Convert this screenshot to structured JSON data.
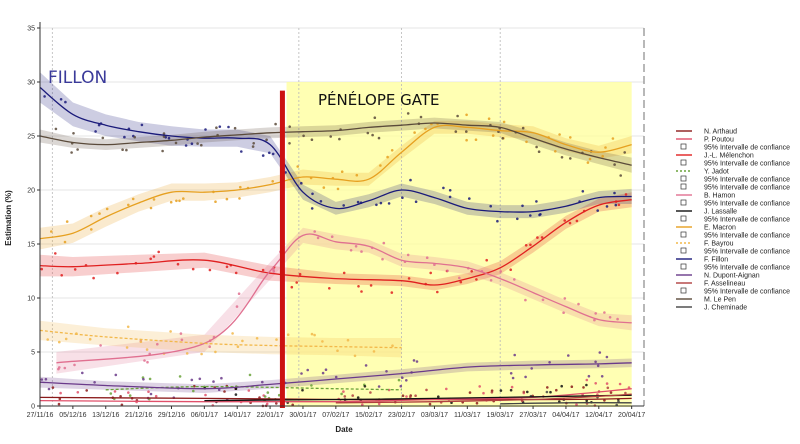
{
  "chart_data": {
    "type": "line",
    "xlabel": "Date",
    "ylabel": "Estimation (%)",
    "ylim": [
      0,
      35
    ],
    "yticks": [
      0,
      5,
      10,
      15,
      20,
      25,
      30,
      35
    ],
    "xlim": [
      "2016-11-27",
      "2017-04-23"
    ],
    "xtick_labels": [
      "27/11/16",
      "05/12/16",
      "13/12/16",
      "21/12/16",
      "29/12/16",
      "06/01/17",
      "14/01/17",
      "22/01/17",
      "30/01/17",
      "07/02/17",
      "15/02/17",
      "23/02/17",
      "03/03/17",
      "11/03/17",
      "19/03/17",
      "27/03/17",
      "04/04/17",
      "12/04/17",
      "20/04/17"
    ],
    "xtick_dates": [
      "2016-11-27",
      "2016-12-05",
      "2016-12-13",
      "2016-12-21",
      "2016-12-29",
      "2017-01-06",
      "2017-01-14",
      "2017-01-22",
      "2017-01-30",
      "2017-02-07",
      "2017-02-15",
      "2017-02-23",
      "2017-03-03",
      "2017-03-11",
      "2017-03-19",
      "2017-03-27",
      "2017-04-04",
      "2017-04-12",
      "2017-04-20"
    ],
    "grid": true,
    "legend_position": "right",
    "annotations": {
      "fillon_label": "FILLON",
      "gate_label": "PÉNÉLOPE GATE",
      "gate_date": "2017-01-25",
      "gate_shade_range": [
        "2017-01-26",
        "2017-04-20"
      ],
      "gate_shade_top": 30,
      "vertical_markers": [
        "2016-11-30",
        "2017-01-29",
        "2017-02-23",
        "2017-03-19",
        "2017-04-23"
      ]
    },
    "series": [
      {
        "name": "N. Arthaud",
        "color": "#8b1a1a",
        "style": "solid",
        "x": [
          "2016-11-27",
          "2017-01-06",
          "2017-02-07",
          "2017-03-03",
          "2017-04-04",
          "2017-04-20"
        ],
        "y": [
          0.8,
          0.7,
          0.6,
          0.6,
          0.6,
          0.7
        ]
      },
      {
        "name": "P. Poutou",
        "color": "#e0506a",
        "style": "solid",
        "x": [
          "2016-11-27",
          "2017-01-06",
          "2017-02-07",
          "2017-03-03",
          "2017-03-27",
          "2017-04-20"
        ],
        "y": [
          0.5,
          0.4,
          0.4,
          0.6,
          0.8,
          1.6
        ]
      },
      {
        "name": "J.-L. Mélenchon",
        "color": "#e02020",
        "style": "solid",
        "x": [
          "2016-11-27",
          "2016-12-05",
          "2016-12-21",
          "2017-01-06",
          "2017-01-22",
          "2017-02-07",
          "2017-02-23",
          "2017-03-03",
          "2017-03-11",
          "2017-03-19",
          "2017-03-27",
          "2017-04-04",
          "2017-04-12",
          "2017-04-20"
        ],
        "y": [
          13,
          12.9,
          13.2,
          13.5,
          12.3,
          11.8,
          11.6,
          11.2,
          11.8,
          12.8,
          14.8,
          17,
          18.6,
          19.1
        ],
        "ci": [
          1.0,
          0.9,
          0.8,
          0.7,
          0.7,
          0.5,
          0.5,
          0.5,
          0.5,
          0.6,
          0.6,
          0.6,
          0.6,
          0.7
        ]
      },
      {
        "name": "Y. Jadot",
        "color": "#6aa23a",
        "style": "dashed",
        "x": [
          "2016-12-13",
          "2017-01-06",
          "2017-02-07",
          "2017-02-23"
        ],
        "y": [
          1.5,
          1.8,
          1.6,
          1.5
        ]
      },
      {
        "name": "B. Hamon",
        "color": "#e07090",
        "style": "solid",
        "x": [
          "2016-12-01",
          "2017-01-06",
          "2017-01-22",
          "2017-01-30",
          "2017-02-07",
          "2017-02-15",
          "2017-02-23",
          "2017-03-03",
          "2017-03-11",
          "2017-03-19",
          "2017-03-27",
          "2017-04-04",
          "2017-04-12",
          "2017-04-20"
        ],
        "y": [
          4,
          5.8,
          12.5,
          15.8,
          15.2,
          14.8,
          13.5,
          13.2,
          12.8,
          11.8,
          10.5,
          9.2,
          8,
          7.7
        ],
        "ci": [
          1.0,
          0.8,
          0.8,
          0.7,
          0.7,
          0.6,
          0.6,
          0.6,
          0.6,
          0.6,
          0.6,
          0.6,
          0.6,
          0.7
        ]
      },
      {
        "name": "J. Lassalle",
        "color": "#111111",
        "style": "solid",
        "x": [
          "2017-01-06",
          "2017-02-07",
          "2017-03-03",
          "2017-04-04",
          "2017-04-20"
        ],
        "y": [
          0.5,
          0.6,
          0.7,
          0.9,
          1.0
        ]
      },
      {
        "name": "E. Macron",
        "color": "#e6a020",
        "style": "solid",
        "x": [
          "2016-11-27",
          "2016-12-05",
          "2016-12-13",
          "2016-12-21",
          "2016-12-29",
          "2017-01-06",
          "2017-01-14",
          "2017-01-22",
          "2017-01-30",
          "2017-02-07",
          "2017-02-15",
          "2017-02-23",
          "2017-03-03",
          "2017-03-11",
          "2017-03-19",
          "2017-03-27",
          "2017-04-04",
          "2017-04-12",
          "2017-04-20"
        ],
        "y": [
          15.5,
          16,
          17.5,
          18.8,
          19.8,
          19.8,
          20,
          20.5,
          21.2,
          21,
          21,
          23.5,
          25.8,
          25.8,
          25.5,
          25.3,
          24.2,
          23.5,
          24.2
        ],
        "ci": [
          1.0,
          0.9,
          0.9,
          0.8,
          0.8,
          0.8,
          0.7,
          0.7,
          0.7,
          0.6,
          0.6,
          0.6,
          0.6,
          0.6,
          0.6,
          0.6,
          0.6,
          0.6,
          0.8
        ]
      },
      {
        "name": "F. Bayrou",
        "color": "#f2b84a",
        "style": "dashed",
        "x": [
          "2016-11-27",
          "2016-12-13",
          "2017-01-06",
          "2017-01-22",
          "2017-02-07",
          "2017-02-23"
        ],
        "y": [
          7,
          6.4,
          5.8,
          5.6,
          5.5,
          5.4
        ],
        "ci": [
          0.9,
          0.8,
          0.8,
          0.8,
          0.8,
          0.9
        ]
      },
      {
        "name": "F. Fillon",
        "color": "#1a1a7a",
        "style": "solid",
        "x": [
          "2016-11-27",
          "2016-12-05",
          "2016-12-13",
          "2016-12-21",
          "2016-12-29",
          "2017-01-06",
          "2017-01-14",
          "2017-01-22",
          "2017-01-30",
          "2017-02-07",
          "2017-02-15",
          "2017-02-23",
          "2017-03-03",
          "2017-03-11",
          "2017-03-19",
          "2017-03-27",
          "2017-04-04",
          "2017-04-12",
          "2017-04-20"
        ],
        "y": [
          29.5,
          27,
          26,
          25.4,
          25,
          24.8,
          24.8,
          24.2,
          19.8,
          18.3,
          19,
          20,
          19.3,
          18.3,
          18,
          18,
          18.5,
          19.3,
          19.4
        ],
        "ci": [
          1.4,
          1.1,
          1.0,
          0.9,
          0.9,
          0.8,
          0.8,
          0.8,
          0.7,
          0.6,
          0.6,
          0.6,
          0.6,
          0.6,
          0.6,
          0.6,
          0.6,
          0.6,
          0.7
        ]
      },
      {
        "name": "N. Dupont-Aignan",
        "color": "#6a3a8a",
        "style": "solid",
        "x": [
          "2016-11-27",
          "2016-12-13",
          "2017-01-06",
          "2017-01-22",
          "2017-02-07",
          "2017-02-23",
          "2017-03-11",
          "2017-03-27",
          "2017-04-12",
          "2017-04-20"
        ],
        "y": [
          2.2,
          1.9,
          1.6,
          2,
          2.5,
          3,
          3.6,
          3.8,
          3.9,
          4
        ],
        "ci": [
          0.5,
          0.4,
          0.4,
          0.4,
          0.4,
          0.4,
          0.4,
          0.4,
          0.4,
          0.4
        ]
      },
      {
        "name": "F. Asselineau",
        "color": "#b04040",
        "style": "solid",
        "x": [
          "2017-02-07",
          "2017-03-03",
          "2017-03-27",
          "2017-04-12",
          "2017-04-20"
        ],
        "y": [
          0.3,
          0.4,
          0.6,
          0.9,
          1.1
        ]
      },
      {
        "name": "M. Le Pen",
        "color": "#5a4a3a",
        "style": "solid",
        "x": [
          "2016-11-27",
          "2016-12-05",
          "2016-12-13",
          "2016-12-21",
          "2016-12-29",
          "2017-01-06",
          "2017-01-14",
          "2017-01-22",
          "2017-01-30",
          "2017-02-07",
          "2017-02-15",
          "2017-02-23",
          "2017-03-03",
          "2017-03-11",
          "2017-03-19",
          "2017-03-27",
          "2017-04-04",
          "2017-04-12",
          "2017-04-20"
        ],
        "y": [
          25,
          24.4,
          24.2,
          24.4,
          24.6,
          24.9,
          25.1,
          25.3,
          25.4,
          25.5,
          25.8,
          26,
          26.2,
          26,
          25.8,
          24.8,
          23.8,
          23,
          22.3
        ],
        "ci": [
          0.6,
          0.5,
          0.5,
          0.5,
          0.5,
          0.5,
          0.5,
          0.5,
          0.5,
          0.5,
          0.5,
          0.5,
          0.5,
          0.5,
          0.5,
          0.6,
          0.6,
          0.6,
          0.7
        ]
      },
      {
        "name": "J. Cheminade",
        "color": "#444444",
        "style": "solid",
        "x": [
          "2017-03-19",
          "2017-04-04",
          "2017-04-20"
        ],
        "y": [
          0.2,
          0.3,
          0.3
        ]
      }
    ]
  },
  "legend": [
    {
      "label": "N. Arthaud",
      "kind": "line",
      "color": "#8b1a1a"
    },
    {
      "label": "P. Poutou",
      "kind": "line",
      "color": "#e0506a"
    },
    {
      "label": "95% Intervalle de confiance",
      "kind": "box",
      "color": "#e02020"
    },
    {
      "label": "J.-L. Mélenchon",
      "kind": "line",
      "color": "#e02020"
    },
    {
      "label": "95% Intervalle de confiance",
      "kind": "box",
      "color": "#e07090"
    },
    {
      "label": "Y. Jadot",
      "kind": "dash",
      "color": "#6aa23a"
    },
    {
      "label": "95% Intervalle de confiance",
      "kind": "box",
      "color": "#e6a020"
    },
    {
      "label": "95% Intervalle de confiance",
      "kind": "box",
      "color": "#f2b84a"
    },
    {
      "label": "B. Hamon",
      "kind": "line",
      "color": "#e07090"
    },
    {
      "label": "95% Intervalle de confiance",
      "kind": "box",
      "color": "#e07090"
    },
    {
      "label": "J. Lassalle",
      "kind": "line",
      "color": "#111111"
    },
    {
      "label": "95% Intervalle de confiance",
      "kind": "box",
      "color": "#e6a020"
    },
    {
      "label": "E. Macron",
      "kind": "line",
      "color": "#e6a020"
    },
    {
      "label": "95% Intervalle de confiance",
      "kind": "box",
      "color": "#f2b84a"
    },
    {
      "label": "F. Bayrou",
      "kind": "dash",
      "color": "#f2b84a"
    },
    {
      "label": "95% Intervalle de confiance",
      "kind": "box",
      "color": "#1a1a7a"
    },
    {
      "label": "F. Fillon",
      "kind": "line",
      "color": "#1a1a7a"
    },
    {
      "label": "95% Intervalle de confiance",
      "kind": "box",
      "color": "#6a3a8a"
    },
    {
      "label": "N. Dupont-Aignan",
      "kind": "line",
      "color": "#6a3a8a"
    },
    {
      "label": "F. Asselineau",
      "kind": "line",
      "color": "#b04040"
    },
    {
      "label": "95% Intervalle de confiance",
      "kind": "box",
      "color": "#5a4a3a"
    },
    {
      "label": "M. Le Pen",
      "kind": "line",
      "color": "#5a4a3a"
    },
    {
      "label": "J. Cheminade",
      "kind": "line",
      "color": "#444444"
    }
  ],
  "colors": {
    "gate_shade": "#ffff99",
    "gate_line": "#cc1111",
    "grid": "#e6e6e6"
  }
}
